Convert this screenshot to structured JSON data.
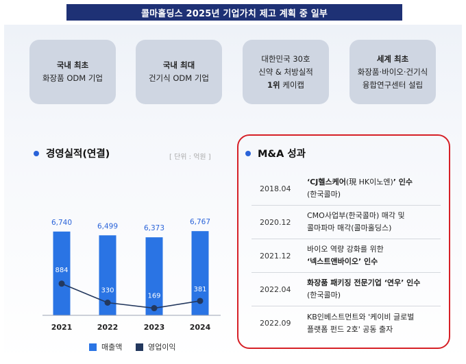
{
  "title": "콜마홀딩스 2025년 기업가치 제고 계획 중 일부",
  "cards": [
    {
      "line1": "국내 최초",
      "line2": "화장품 ODM 기업"
    },
    {
      "line1": "국내 최대",
      "line2": "건기식 ODM 기업"
    },
    {
      "line1": "대한민국 30호",
      "line2": "신약 & 처방실적",
      "line3_bold": "1위",
      "line3": " 케이캡"
    },
    {
      "line1": "세계 최초",
      "line2": "화장품·바이오·건기식",
      "line3": "융합연구센터 설립"
    }
  ],
  "performance": {
    "title": "경영실적(연결)",
    "unit": "[ 단위 : 억원 ]",
    "legend": {
      "sales": "매출액",
      "operating_profit": "영업이익"
    }
  },
  "chart_data": {
    "type": "bar",
    "categories": [
      "2021",
      "2022",
      "2023",
      "2024"
    ],
    "series": [
      {
        "name": "매출액",
        "type": "bar",
        "color": "#2a74e4",
        "values": [
          6740,
          6499,
          6373,
          6767
        ],
        "labels": [
          "6,740",
          "6,499",
          "6,373",
          "6,767"
        ]
      },
      {
        "name": "영업이익",
        "type": "line",
        "color": "#23385e",
        "values": [
          884,
          330,
          169,
          381
        ],
        "labels": [
          "884",
          "330",
          "169",
          "381"
        ]
      }
    ]
  },
  "ma": {
    "title": "M&A 성과",
    "items": [
      {
        "date": "2018.04",
        "lines": [
          [
            {
              "t": "‘CJ헬스케어",
              "b": true
            },
            {
              "t": "(現 HK이노엔)",
              "b": false
            },
            {
              "t": "’ 인수",
              "b": true
            }
          ],
          [
            {
              "t": "(한국콜마)",
              "b": false
            }
          ]
        ]
      },
      {
        "date": "2020.12",
        "lines": [
          [
            {
              "t": "CMO사업부(한국콜마) 매각 및",
              "b": false
            }
          ],
          [
            {
              "t": "콜마파마 매각(콜마홀딩스)",
              "b": false
            }
          ]
        ]
      },
      {
        "date": "2021.12",
        "lines": [
          [
            {
              "t": "바이오 역량 강화를 위한",
              "b": false
            }
          ],
          [
            {
              "t": "‘넥스트앤바이오’ 인수",
              "b": true
            }
          ]
        ]
      },
      {
        "date": "2022.04",
        "lines": [
          [
            {
              "t": "화장품 패키징 전문기업 ‘연우’ 인수",
              "b": true
            }
          ],
          [
            {
              "t": "(한국콜마)",
              "b": false
            }
          ]
        ]
      },
      {
        "date": "2022.09",
        "lines": [
          [
            {
              "t": "KB인베스트먼트와 '케이비 글로벌",
              "b": false
            }
          ],
          [
            {
              "t": "플랫폼 펀드 2호' 공동 출자",
              "b": false
            }
          ]
        ]
      }
    ]
  }
}
